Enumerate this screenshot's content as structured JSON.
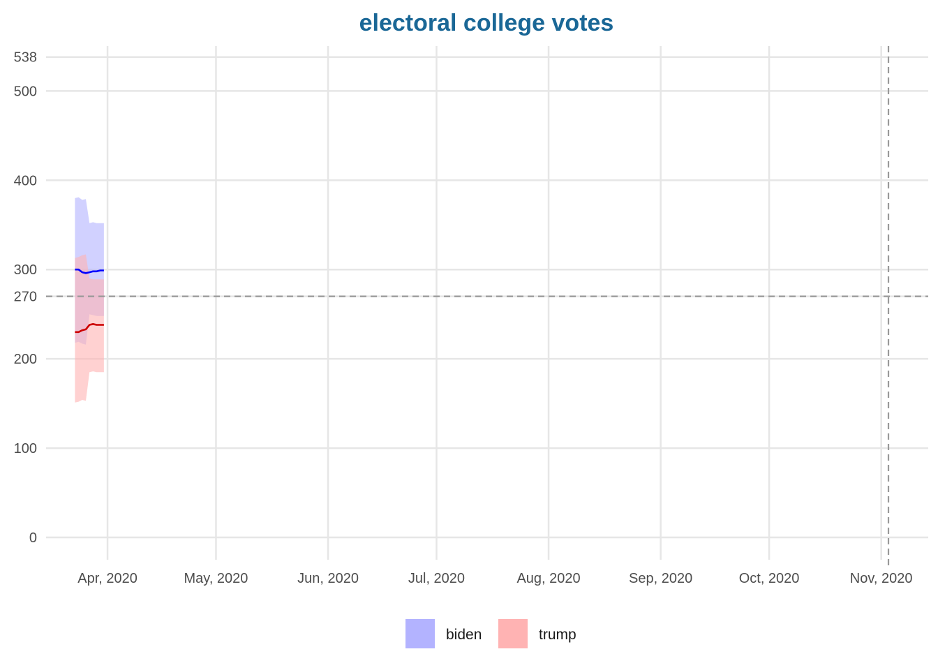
{
  "chart_data": {
    "type": "area",
    "title": "electoral college votes",
    "title_color": "#1a6796",
    "xlabel": "",
    "ylabel": "",
    "x_range": [
      "2020-03-15",
      "2020-11-14"
    ],
    "ylim": [
      -25,
      555
    ],
    "y_ticks": [
      0,
      100,
      200,
      270,
      300,
      400,
      500,
      538
    ],
    "x_ticks": [
      {
        "date": "2020-04-01",
        "label": "Apr, 2020"
      },
      {
        "date": "2020-05-01",
        "label": "May, 2020"
      },
      {
        "date": "2020-06-01",
        "label": "Jun, 2020"
      },
      {
        "date": "2020-07-01",
        "label": "Jul, 2020"
      },
      {
        "date": "2020-08-01",
        "label": "Aug, 2020"
      },
      {
        "date": "2020-09-01",
        "label": "Sep, 2020"
      },
      {
        "date": "2020-10-01",
        "label": "Oct, 2020"
      },
      {
        "date": "2020-11-01",
        "label": "Nov, 2020"
      }
    ],
    "reference_lines": {
      "horizontal_y": 270,
      "vertical_date": "2020-11-03",
      "style": "dashed",
      "color": "#999999"
    },
    "grid": true,
    "legend": {
      "position": "bottom"
    },
    "dates": [
      "2020-03-23",
      "2020-03-24",
      "2020-03-25",
      "2020-03-26",
      "2020-03-27",
      "2020-03-28",
      "2020-03-29",
      "2020-03-30",
      "2020-03-31"
    ],
    "series": [
      {
        "name": "biden",
        "line_color": "#0000ff",
        "fill_color": "#b3b3ff",
        "median": [
          300,
          300,
          297,
          296,
          297,
          298,
          298,
          299,
          299
        ],
        "lower": [
          218,
          219,
          217,
          216,
          250,
          249,
          248,
          248,
          248
        ],
        "upper": [
          380,
          381,
          378,
          379,
          352,
          353,
          352,
          352,
          352
        ]
      },
      {
        "name": "trump",
        "line_color": "#cc0000",
        "fill_color": "#ffb3b3",
        "median": [
          230,
          230,
          232,
          233,
          238,
          239,
          238,
          238,
          238
        ],
        "lower": [
          151,
          152,
          154,
          153,
          185,
          186,
          185,
          185,
          185
        ],
        "upper": [
          313,
          314,
          316,
          317,
          290,
          289,
          289,
          289,
          289
        ]
      }
    ]
  }
}
